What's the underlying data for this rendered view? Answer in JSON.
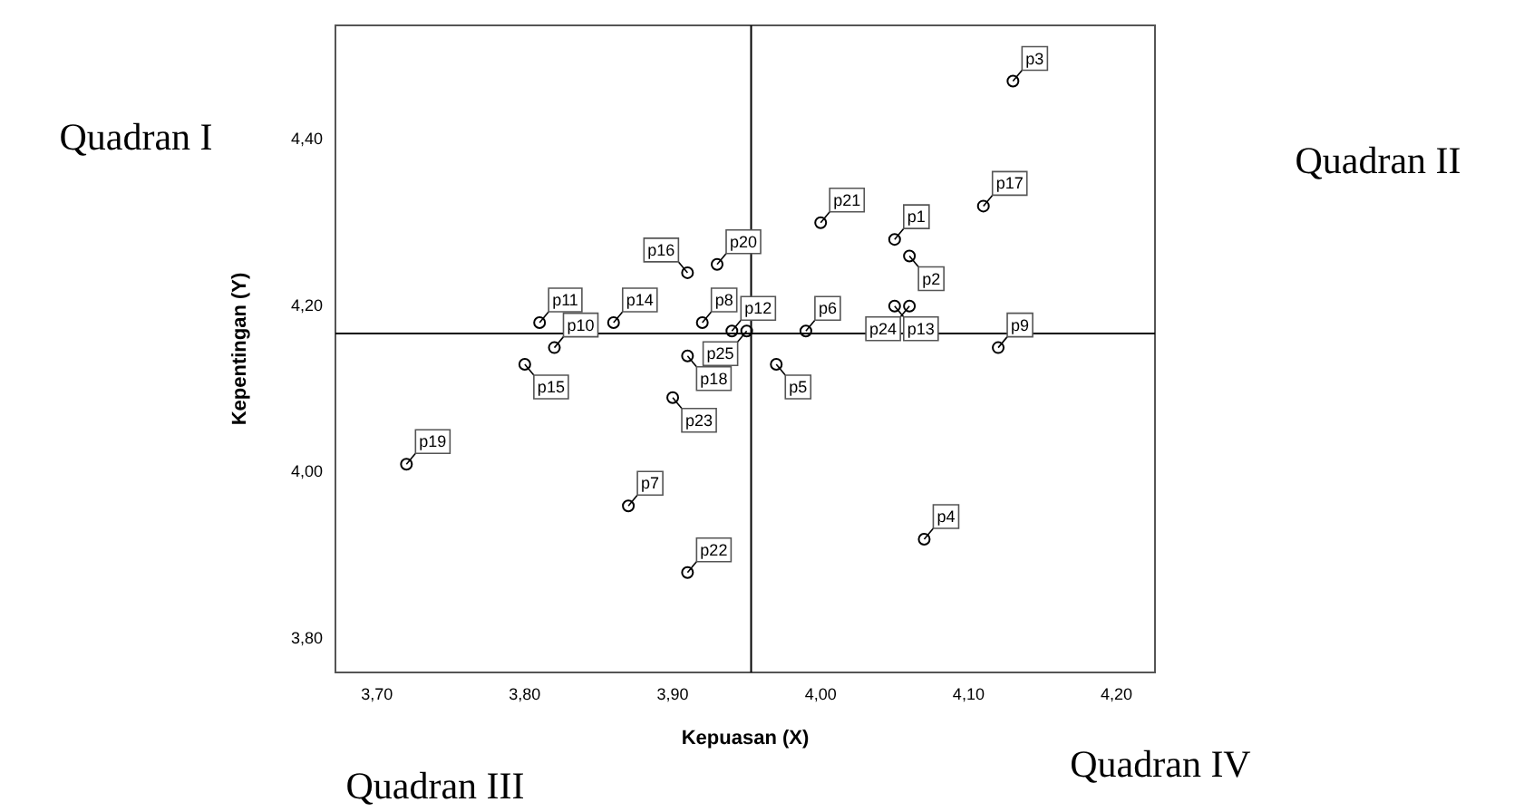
{
  "chart_data": {
    "type": "scatter",
    "xlabel": "Kepuasan (X)",
    "ylabel": "Kepentingan (Y)",
    "x": [
      4.05,
      4.06,
      4.13,
      4.07,
      3.97,
      3.99,
      3.87,
      3.92,
      4.12,
      3.82,
      3.81,
      3.94,
      4.05,
      3.86,
      3.8,
      3.91,
      4.11,
      3.91,
      3.72,
      3.93,
      4.0,
      3.91,
      3.9,
      4.06,
      3.95
    ],
    "values": [
      4.28,
      4.26,
      4.47,
      3.92,
      4.13,
      4.17,
      3.96,
      4.18,
      4.15,
      4.15,
      4.18,
      4.17,
      4.2,
      4.18,
      4.13,
      4.24,
      4.32,
      4.14,
      4.01,
      4.25,
      4.3,
      3.88,
      4.09,
      4.2,
      4.17
    ],
    "value_labels": [
      "p1",
      "p2",
      "p3",
      "p4",
      "p5",
      "p6",
      "p7",
      "p8",
      "p9",
      "p10",
      "p11",
      "p12",
      "p13",
      "p14",
      "p15",
      "p16",
      "p17",
      "p18",
      "p19",
      "p20",
      "p21",
      "p22",
      "p23",
      "p24",
      "p25"
    ],
    "color": "#000000",
    "marker": "circle",
    "grid": false,
    "legend": false,
    "xlim": [
      3.672,
      4.226
    ],
    "ylim": [
      3.76,
      4.537
    ],
    "xticks": [
      {
        "value": 3.7,
        "label": "3,70"
      },
      {
        "value": 3.8,
        "label": "3,80"
      },
      {
        "value": 3.9,
        "label": "3,90"
      },
      {
        "value": 4.0,
        "label": "4,00"
      },
      {
        "value": 4.1,
        "label": "4,10"
      },
      {
        "value": 4.2,
        "label": "4,20"
      }
    ],
    "yticks": [
      {
        "value": 3.8,
        "label": "3,80"
      },
      {
        "value": 4.0,
        "label": "4,00"
      },
      {
        "value": 4.2,
        "label": "4,20"
      },
      {
        "value": 4.4,
        "label": "4,40"
      }
    ],
    "ref_lines": [
      {
        "axis": "x",
        "value": 3.953,
        "color": "#000000"
      },
      {
        "axis": "y",
        "value": 4.167,
        "color": "#000000"
      }
    ],
    "annotations": [
      "Quadran I",
      "Quadran II",
      "Quadran III",
      "Quadran IV"
    ]
  }
}
